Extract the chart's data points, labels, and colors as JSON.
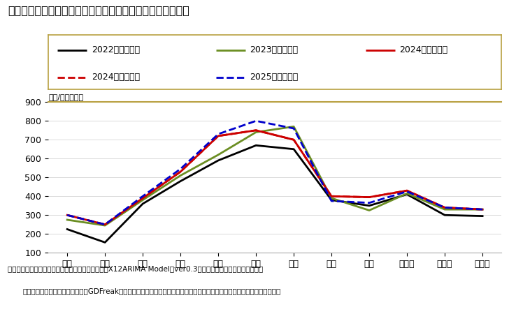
{
  "title": "「二人以上世帯」の１世帯当たり消費支出額の１２ケ月予測",
  "ylabel": "（円/月・世帯）",
  "footnote1": "出所：家計調査（二人以上世帯）（総務省）を基にX12ARIMA Model（ver0.3）により各月の曜日構成、月末稼",
  "footnote2": "日、うるう年の違いを織り込んでGDFreak予測。なお、東日本大震災後の影響については、モデルにダミー変数を立て対応。",
  "months": [
    "１月",
    "２月",
    "３月",
    "４月",
    "５月",
    "６月",
    "７月",
    "８月",
    "９月",
    "１０月",
    "１１月",
    "１２月"
  ],
  "series": [
    {
      "label": "2022年（実績）",
      "color": "#000000",
      "linestyle": "solid",
      "linewidth": 2.0,
      "values": [
        225,
        155,
        360,
        480,
        590,
        670,
        650,
        380,
        350,
        410,
        300,
        295
      ]
    },
    {
      "label": "2023年（実績）",
      "color": "#6b8e23",
      "linestyle": "solid",
      "linewidth": 2.0,
      "values": [
        275,
        245,
        380,
        510,
        620,
        740,
        770,
        390,
        325,
        415,
        330,
        330
      ]
    },
    {
      "label": "2024年（実績）",
      "color": "#cc0000",
      "linestyle": "solid",
      "linewidth": 2.0,
      "values": [
        300,
        250,
        390,
        530,
        720,
        750,
        700,
        400,
        395,
        430,
        340,
        330
      ]
    },
    {
      "label": "2024年（予測）",
      "color": "#cc0000",
      "linestyle": "dashed",
      "linewidth": 2.0,
      "values": [
        300,
        250,
        390,
        530,
        720,
        750,
        700,
        400,
        395,
        430,
        340,
        330
      ]
    },
    {
      "label": "2025年（予測）",
      "color": "#0000cc",
      "linestyle": "dashed",
      "linewidth": 2.0,
      "values": [
        300,
        250,
        400,
        545,
        730,
        800,
        760,
        375,
        365,
        425,
        340,
        330
      ]
    }
  ],
  "ylim": [
    100,
    900
  ],
  "yticks": [
    100,
    200,
    300,
    400,
    500,
    600,
    700,
    800,
    900
  ],
  "background_color": "#ffffff",
  "plot_bg_color": "#ffffff",
  "border_color": "#b8a040",
  "legend_border_color": "#b8a040"
}
